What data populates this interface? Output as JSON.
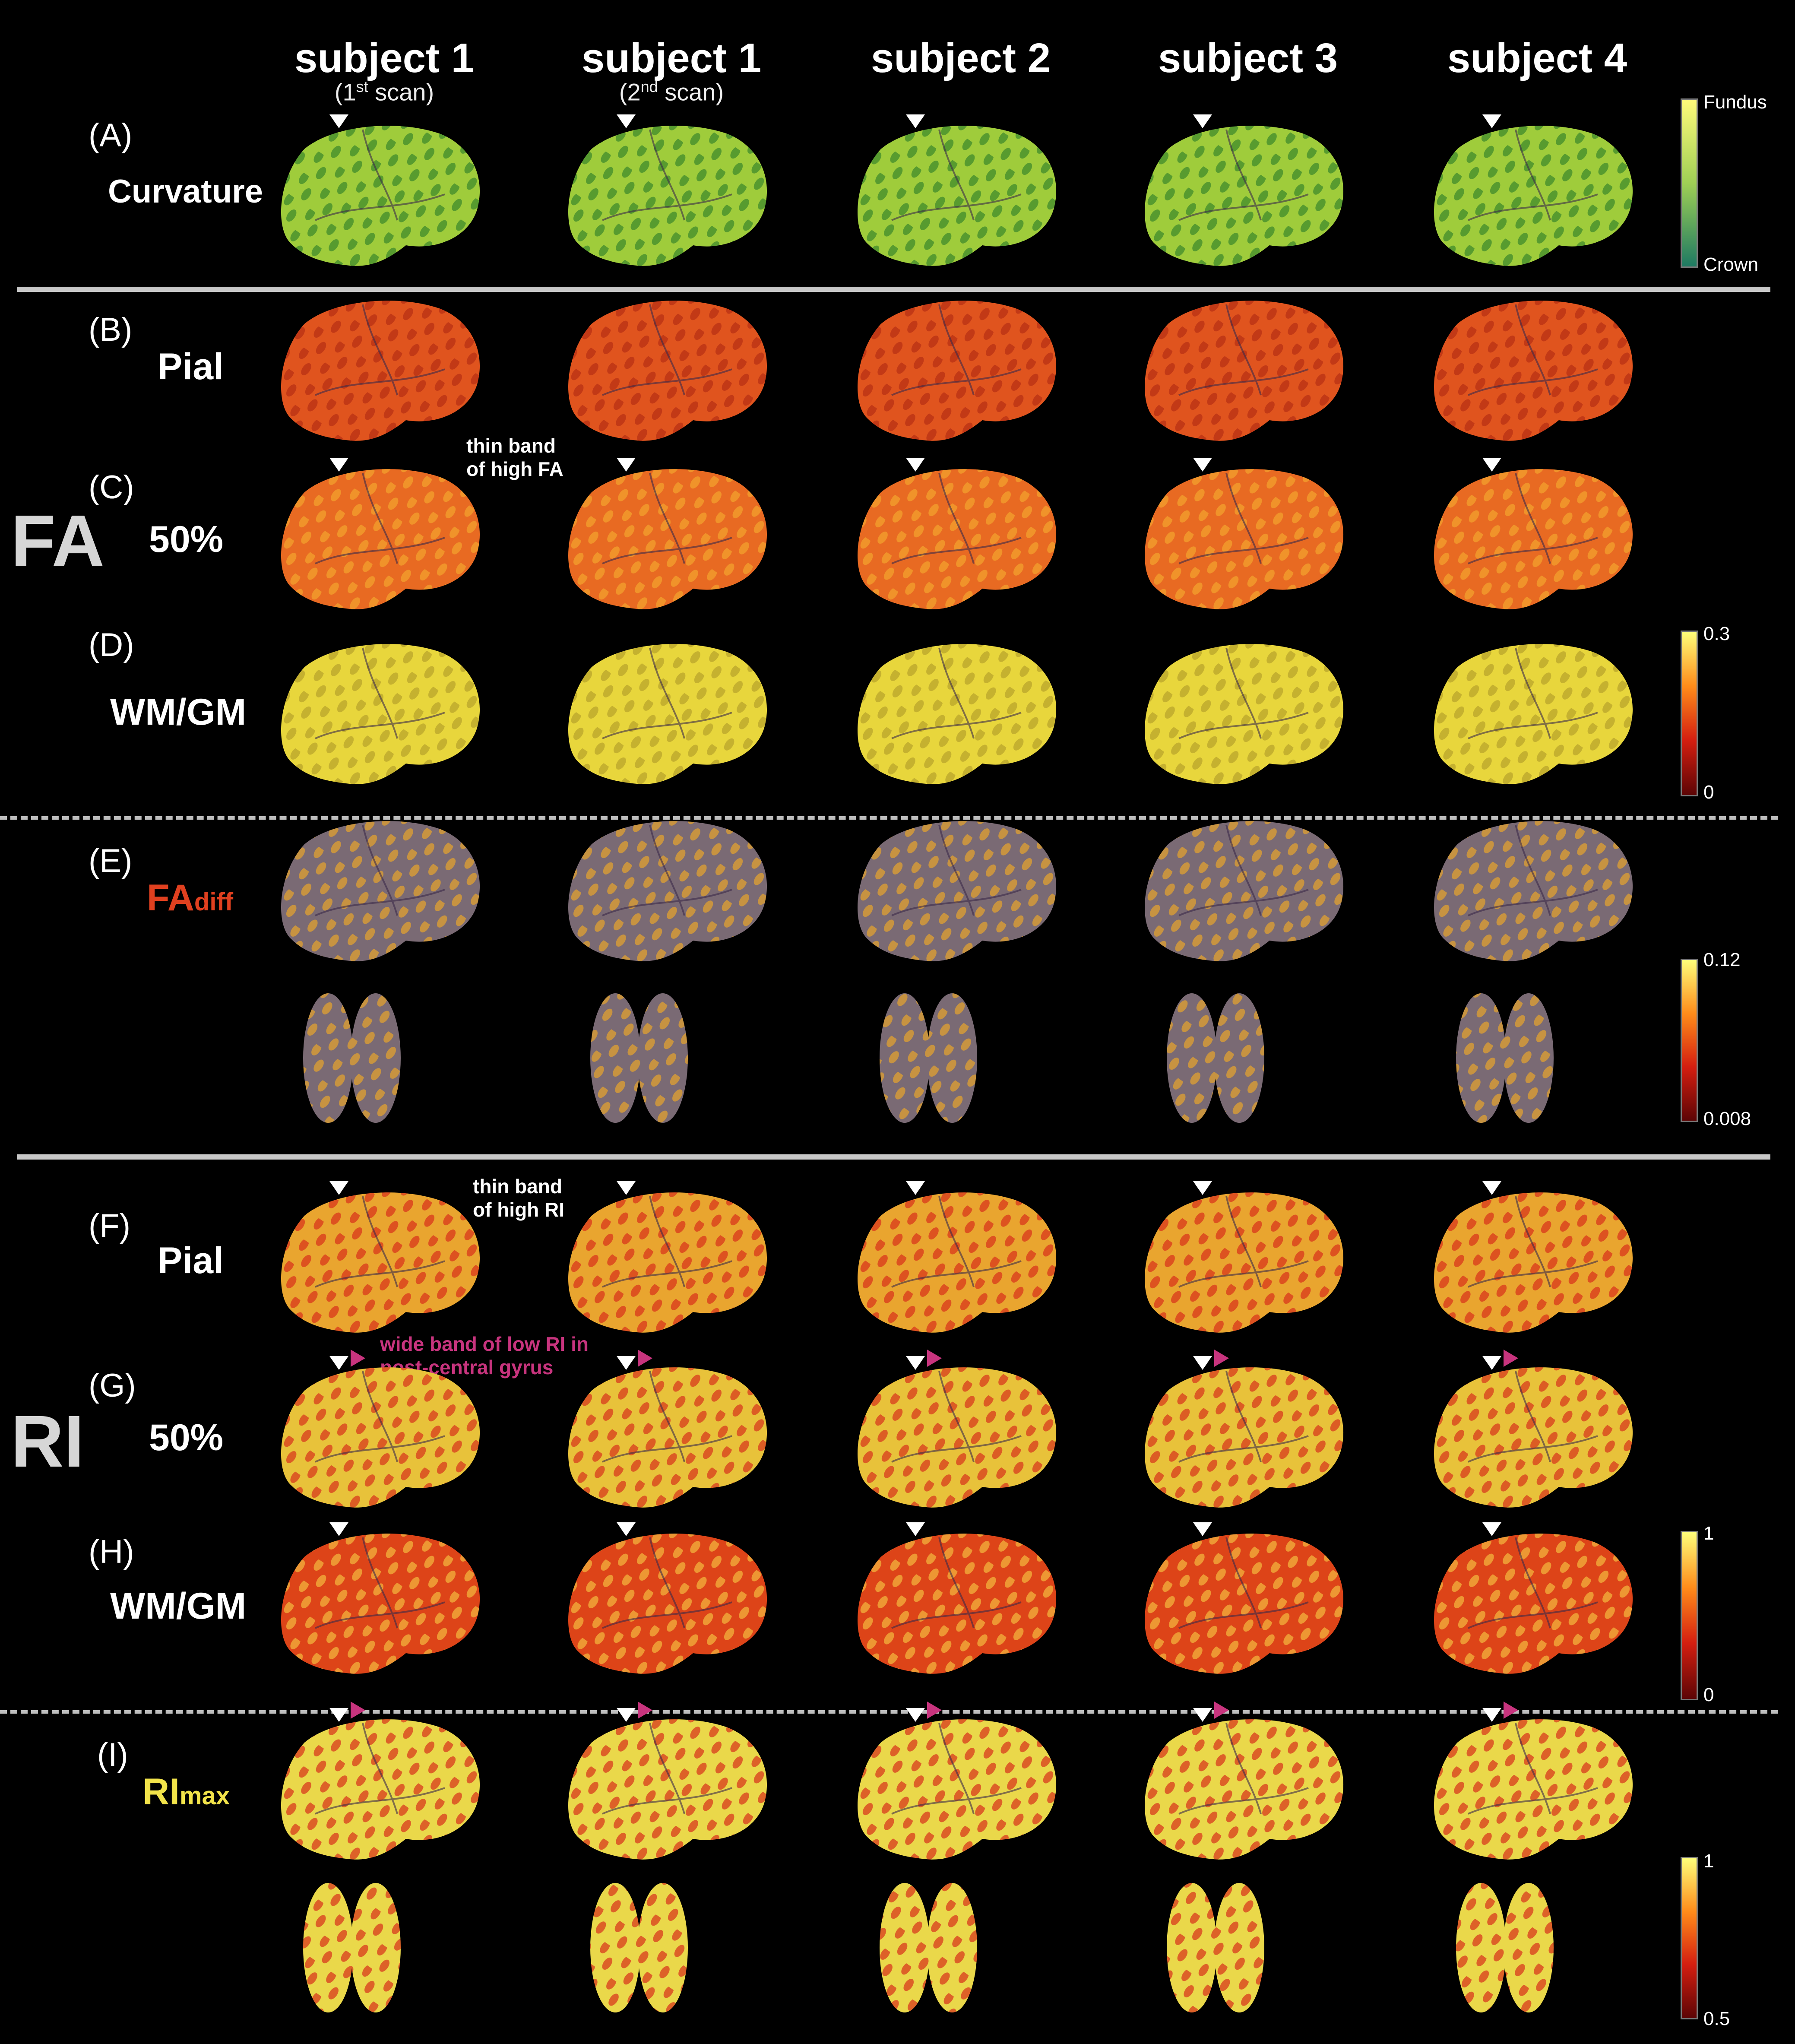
{
  "columns": [
    {
      "subject": "subject 1",
      "scan_sup": "st",
      "scan_pre": "(1",
      "scan_post": " scan)"
    },
    {
      "subject": "subject 1",
      "scan_sup": "nd",
      "scan_pre": "(2",
      "scan_post": " scan)"
    },
    {
      "subject": "subject 2"
    },
    {
      "subject": "subject 3"
    },
    {
      "subject": "subject 4"
    }
  ],
  "panels": {
    "A": {
      "tag": "(A)",
      "label": "Curvature"
    },
    "B": {
      "tag": "(B)",
      "label": "Pial"
    },
    "C": {
      "tag": "(C)",
      "label": "50%"
    },
    "D": {
      "tag": "(D)",
      "label": "WM/GM"
    },
    "E": {
      "tag": "(E)",
      "label": "FA",
      "sub": "diff"
    },
    "F": {
      "tag": "(F)",
      "label": "Pial"
    },
    "G": {
      "tag": "(G)",
      "label": "50%"
    },
    "H": {
      "tag": "(H)",
      "label": "WM/GM"
    },
    "I": {
      "tag": "(I)",
      "label": "RI",
      "sub": "max"
    }
  },
  "group_labels": {
    "fa": "FA",
    "ri": "RI"
  },
  "annotations": {
    "fa_band": [
      "thin band",
      "of high FA"
    ],
    "ri_band": [
      "thin band",
      "of high RI"
    ],
    "low_ri": [
      "wide band of low RI in",
      "post-central gyrus"
    ]
  },
  "colorbars": {
    "curvature": {
      "top": "Fundus",
      "bottom": "Crown",
      "colors": [
        "#fffb7a",
        "#9fcf55",
        "#1e7a62"
      ]
    },
    "fa": {
      "top": "0.3",
      "bottom": "0",
      "colors": [
        "#ffff7a",
        "#ff8c1a",
        "#d41e10",
        "#5c0505"
      ]
    },
    "fa_diff": {
      "top": "0.12",
      "bottom": "0.008",
      "colors": [
        "#ffff7a",
        "#ff8c1a",
        "#d41e10",
        "#5c0505"
      ]
    },
    "ri": {
      "top": "1",
      "bottom": "0",
      "colors": [
        "#ffff7a",
        "#ff8c1a",
        "#d41e10",
        "#5c0505"
      ]
    },
    "ri_max": {
      "top": "1",
      "bottom": "0.5",
      "colors": [
        "#ffff7a",
        "#ff8c1a",
        "#d41e10",
        "#5c0505"
      ]
    }
  },
  "map_colors": {
    "curvature": {
      "base": "#9fcc3b",
      "stripe": "#3e8a2a"
    },
    "pial_fa": {
      "base": "#e0541e",
      "stripe": "#b83012"
    },
    "mid_fa": {
      "base": "#e86a22",
      "stripe": "#f2a02c"
    },
    "wm_fa": {
      "base": "#e8d63c",
      "stripe": "#b9a42a"
    },
    "fadiff": {
      "base": "#7a6a74",
      "stripe": "#e0a030"
    },
    "pial_ri": {
      "base": "#e9a52f",
      "stripe": "#d9361a"
    },
    "mid_ri": {
      "base": "#e8c23a",
      "stripe": "#d8391c"
    },
    "wm_ri": {
      "base": "#dd4418",
      "stripe": "#f2b33c"
    },
    "rimax": {
      "base": "#ead84a",
      "stripe": "#d8391c"
    }
  }
}
